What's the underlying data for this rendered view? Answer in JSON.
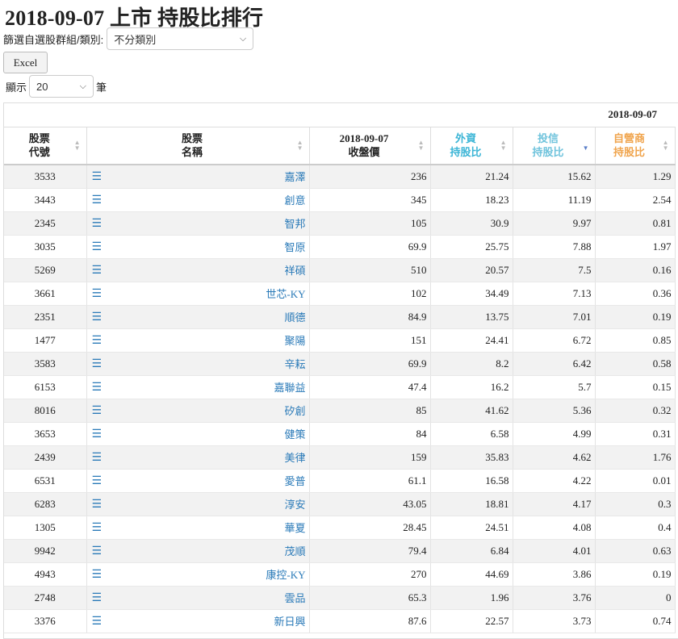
{
  "title": "2018-09-07 上市 持股比排行",
  "filter": {
    "label": "篩選自選股群組/類別:",
    "selected": "不分類別"
  },
  "excel_label": "Excel",
  "limit": {
    "prefix": "顯示",
    "selected": "20",
    "suffix": "筆"
  },
  "table": {
    "group_header": "2018-09-07",
    "headers": {
      "code": [
        "股票",
        "代號"
      ],
      "name": [
        "股票",
        "名稱"
      ],
      "close": [
        "2018-09-07",
        "收盤價"
      ],
      "foreign": [
        "外資",
        "持股比"
      ],
      "trust": [
        "投信",
        "持股比"
      ],
      "dealer": [
        "自營商",
        "持股比"
      ]
    },
    "colors": {
      "foreign": "#3bb5d6",
      "trust": "#6fc3dc",
      "dealer": "#f0a44c",
      "link": "#2a7ab8"
    },
    "sort": {
      "column": "trust",
      "direction": "desc"
    },
    "rows": [
      {
        "code": "3533",
        "name": "嘉澤",
        "close": "236",
        "foreign": "21.24",
        "trust": "15.62",
        "dealer": "1.29"
      },
      {
        "code": "3443",
        "name": "創意",
        "close": "345",
        "foreign": "18.23",
        "trust": "11.19",
        "dealer": "2.54"
      },
      {
        "code": "2345",
        "name": "智邦",
        "close": "105",
        "foreign": "30.9",
        "trust": "9.97",
        "dealer": "0.81"
      },
      {
        "code": "3035",
        "name": "智原",
        "close": "69.9",
        "foreign": "25.75",
        "trust": "7.88",
        "dealer": "1.97"
      },
      {
        "code": "5269",
        "name": "祥碩",
        "close": "510",
        "foreign": "20.57",
        "trust": "7.5",
        "dealer": "0.16"
      },
      {
        "code": "3661",
        "name": "世芯-KY",
        "close": "102",
        "foreign": "34.49",
        "trust": "7.13",
        "dealer": "0.36"
      },
      {
        "code": "2351",
        "name": "順德",
        "close": "84.9",
        "foreign": "13.75",
        "trust": "7.01",
        "dealer": "0.19"
      },
      {
        "code": "1477",
        "name": "聚陽",
        "close": "151",
        "foreign": "24.41",
        "trust": "6.72",
        "dealer": "0.85"
      },
      {
        "code": "3583",
        "name": "辛耘",
        "close": "69.9",
        "foreign": "8.2",
        "trust": "6.42",
        "dealer": "0.58"
      },
      {
        "code": "6153",
        "name": "嘉聯益",
        "close": "47.4",
        "foreign": "16.2",
        "trust": "5.7",
        "dealer": "0.15"
      },
      {
        "code": "8016",
        "name": "矽創",
        "close": "85",
        "foreign": "41.62",
        "trust": "5.36",
        "dealer": "0.32"
      },
      {
        "code": "3653",
        "name": "健策",
        "close": "84",
        "foreign": "6.58",
        "trust": "4.99",
        "dealer": "0.31"
      },
      {
        "code": "2439",
        "name": "美律",
        "close": "159",
        "foreign": "35.83",
        "trust": "4.62",
        "dealer": "1.76"
      },
      {
        "code": "6531",
        "name": "愛普",
        "close": "61.1",
        "foreign": "16.58",
        "trust": "4.22",
        "dealer": "0.01"
      },
      {
        "code": "6283",
        "name": "淳安",
        "close": "43.05",
        "foreign": "18.81",
        "trust": "4.17",
        "dealer": "0.3"
      },
      {
        "code": "1305",
        "name": "華夏",
        "close": "28.45",
        "foreign": "24.51",
        "trust": "4.08",
        "dealer": "0.4"
      },
      {
        "code": "9942",
        "name": "茂順",
        "close": "79.4",
        "foreign": "6.84",
        "trust": "4.01",
        "dealer": "0.63"
      },
      {
        "code": "4943",
        "name": "康控-KY",
        "close": "270",
        "foreign": "44.69",
        "trust": "3.86",
        "dealer": "0.19"
      },
      {
        "code": "2748",
        "name": "雲品",
        "close": "65.3",
        "foreign": "1.96",
        "trust": "3.76",
        "dealer": "0"
      },
      {
        "code": "3376",
        "name": "新日興",
        "close": "87.6",
        "foreign": "22.57",
        "trust": "3.73",
        "dealer": "0.74"
      }
    ]
  }
}
